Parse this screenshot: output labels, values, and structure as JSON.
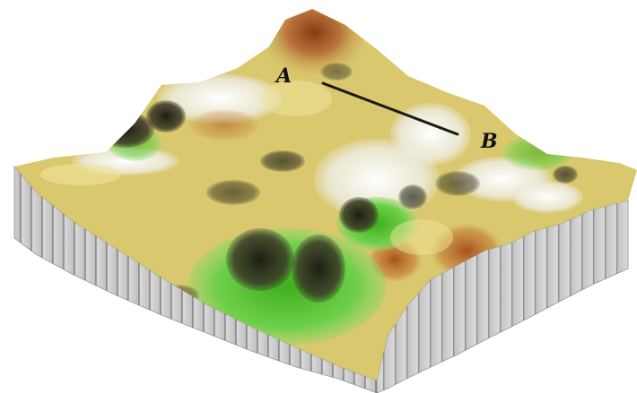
{
  "figure": {
    "point_a_label": "A",
    "point_b_label": "B"
  },
  "colors": {
    "background": "#ffffff",
    "cliff_wall": "#c9c9c9",
    "cliff_stripe": "#8a8a8a",
    "high_terrain": "#8a4a1e",
    "mid_terrain": "#d8c46a",
    "light_terrain": "#f2ecd0",
    "valley_green": "#4fbf2c",
    "shadow": "#2a2a1e",
    "profile_line": "#1a1a1a"
  }
}
